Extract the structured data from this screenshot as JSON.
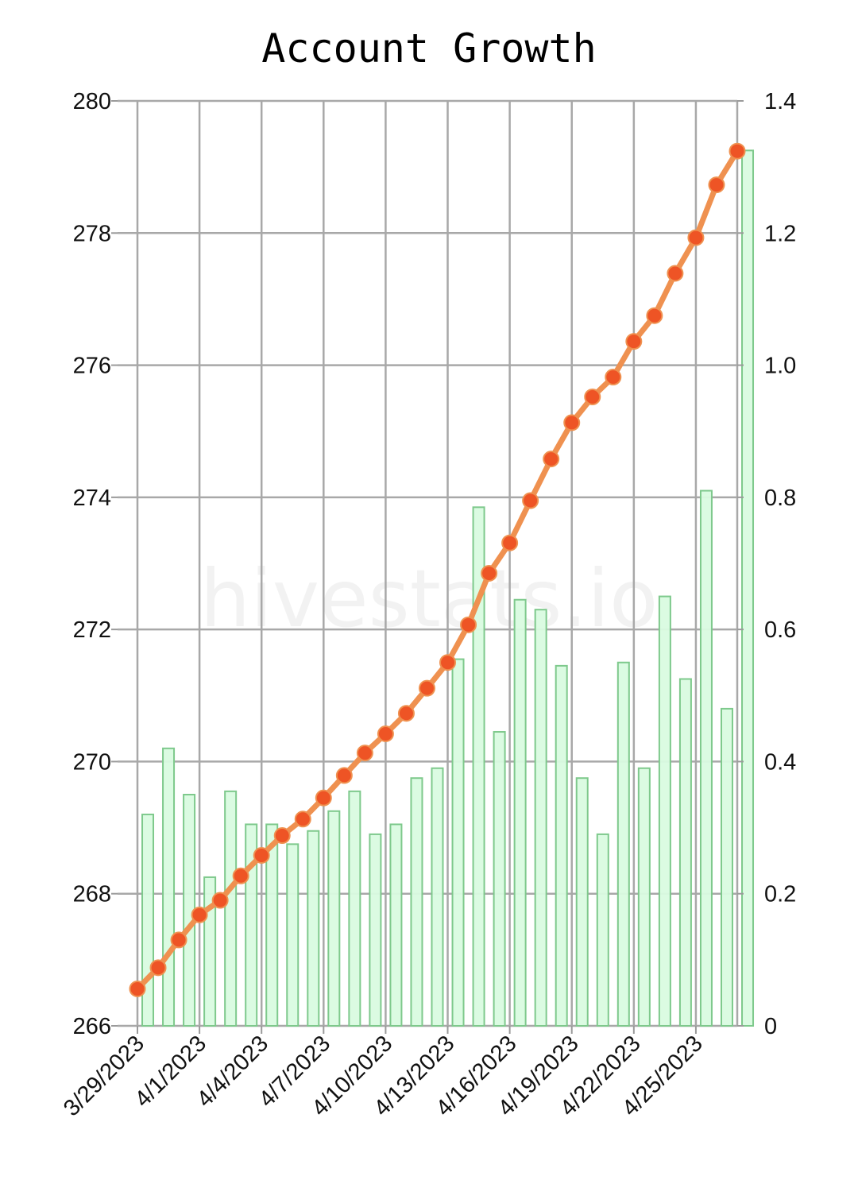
{
  "chart_data": {
    "type": "bar",
    "title": "Account Growth",
    "watermark": "hivestats.io",
    "x": [
      "3/29/2023",
      "3/30/2023",
      "3/31/2023",
      "4/1/2023",
      "4/2/2023",
      "4/3/2023",
      "4/4/2023",
      "4/5/2023",
      "4/6/2023",
      "4/7/2023",
      "4/8/2023",
      "4/9/2023",
      "4/10/2023",
      "4/11/2023",
      "4/12/2023",
      "4/13/2023",
      "4/14/2023",
      "4/15/2023",
      "4/16/2023",
      "4/17/2023",
      "4/18/2023",
      "4/19/2023",
      "4/20/2023",
      "4/21/2023",
      "4/22/2023",
      "4/23/2023",
      "4/24/2023",
      "4/25/2023",
      "4/26/2023",
      "4/27/2023"
    ],
    "x_tick_labels": [
      "3/29/2023",
      "4/1/2023",
      "4/4/2023",
      "4/7/2023",
      "4/10/2023",
      "4/13/2023",
      "4/16/2023",
      "4/19/2023",
      "4/22/2023",
      "4/25/2023"
    ],
    "y_left": {
      "ticks": [
        266,
        268,
        270,
        272,
        274,
        276,
        278,
        280
      ],
      "range": [
        266,
        280
      ]
    },
    "y_right": {
      "ticks": [
        "0",
        "0.2",
        "0.4",
        "0.6",
        "0.8",
        "1.0",
        "1.2",
        "1.4"
      ],
      "range": [
        0,
        1.4
      ]
    },
    "series": [
      {
        "type": "line",
        "axis": "left",
        "color": "#ef9150",
        "marker_color": "#ee5425",
        "values": [
          266.56,
          266.88,
          267.3,
          267.68,
          267.9,
          268.27,
          268.58,
          268.88,
          269.13,
          269.45,
          269.79,
          270.13,
          270.42,
          270.73,
          271.11,
          271.5,
          272.07,
          272.85,
          273.31,
          273.95,
          274.58,
          275.13,
          275.52,
          275.82,
          276.36,
          276.75,
          277.39,
          277.93,
          278.73,
          279.24
        ]
      },
      {
        "type": "bar",
        "axis": "right",
        "color": "#d9fbe0",
        "edge_color": "#7ec98c",
        "values": [
          0.32,
          0.42,
          0.35,
          0.225,
          0.355,
          0.305,
          0.305,
          0.275,
          0.295,
          0.325,
          0.355,
          0.29,
          0.305,
          0.375,
          0.39,
          0.555,
          0.785,
          0.445,
          0.645,
          0.63,
          0.545,
          0.375,
          0.29,
          0.55,
          0.39,
          0.65,
          0.525,
          0.81,
          0.48,
          1.325
        ]
      }
    ],
    "grid": true,
    "legend": "none"
  }
}
